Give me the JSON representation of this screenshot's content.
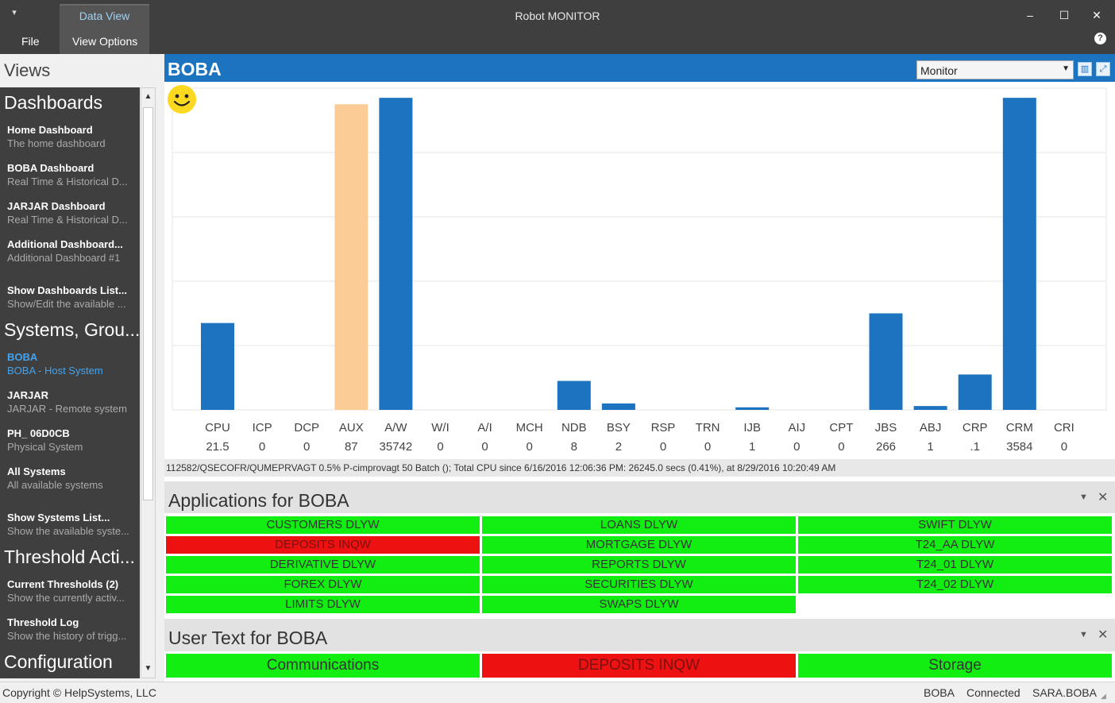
{
  "window": {
    "title": "Robot MONITOR",
    "tab_label": "Data View",
    "menu": [
      "File",
      "View Options"
    ],
    "controls": {
      "minimize": "–",
      "maximize": "☐",
      "close": "✕",
      "help": "?"
    }
  },
  "sidebar": {
    "title": "Views",
    "sections": {
      "dashboards": "Dashboards",
      "systems": "Systems, Grou...",
      "thresholds": "Threshold Acti...",
      "configuration": "Configuration"
    },
    "dashboards": [
      {
        "title": "Home Dashboard",
        "sub": "The home dashboard"
      },
      {
        "title": "BOBA Dashboard",
        "sub": "Real Time & Historical D..."
      },
      {
        "title": "JARJAR Dashboard",
        "sub": "Real Time & Historical D..."
      },
      {
        "title": "Additional Dashboard...",
        "sub": "Additional Dashboard #1"
      },
      {
        "title": "Show Dashboards List...",
        "sub": "Show/Edit the available ..."
      }
    ],
    "systems": [
      {
        "title": "BOBA",
        "sub": "BOBA - Host System"
      },
      {
        "title": "JARJAR",
        "sub": "JARJAR - Remote system"
      },
      {
        "title": "PH_ 06D0CB",
        "sub": "Physical System"
      },
      {
        "title": "All Systems",
        "sub": "All available systems"
      },
      {
        "title": "Show Systems List...",
        "sub": "Show the available syste..."
      }
    ],
    "thresholds": [
      {
        "title": "Current Thresholds (2)",
        "sub": "Show the currently activ..."
      },
      {
        "title": "Threshold Log",
        "sub": "Show the history of trigg..."
      }
    ]
  },
  "main": {
    "title": "BOBA",
    "view_select": "Monitor",
    "status_line": "112582/QSECOFR/QUMEPRVAGT 0.5% P-cimprovagt 50 Batch (); Total CPU since 6/16/2016 12:06:36 PM: 26245.0 secs (0.41%), at 8/29/2016 10:20:49 AM"
  },
  "chart_data": {
    "type": "bar",
    "categories": [
      "CPU",
      "ICP",
      "DCP",
      "AUX",
      "A/W",
      "W/I",
      "A/I",
      "MCH",
      "NDB",
      "BSY",
      "RSP",
      "TRN",
      "IJB",
      "AIJ",
      "CPT",
      "JBS",
      "ABJ",
      "CRP",
      "CRM",
      "CRI"
    ],
    "value_labels": [
      "21.5",
      "0",
      "0",
      "87",
      "35742",
      "0",
      "0",
      "0",
      "8",
      "2",
      "0",
      "0",
      "1",
      "0",
      "0",
      "266",
      "1",
      ".1",
      "3584",
      "0"
    ],
    "bar_fraction": [
      0.27,
      0,
      0,
      0.95,
      0.97,
      0,
      0,
      0,
      0.09,
      0.02,
      0,
      0,
      0.008,
      0,
      0,
      0.3,
      0.012,
      0.11,
      0.97,
      0
    ],
    "highlight_index": 3,
    "colors": {
      "bar": "#1c73c0",
      "highlight": "#fccc96",
      "grid": "#e4e4e4"
    },
    "grid": true
  },
  "applications": {
    "title": "Applications for BOBA",
    "columns": [
      [
        {
          "label": "CUSTOMERS DLYW",
          "status": "ok"
        },
        {
          "label": "DEPOSITS INQW",
          "status": "bad"
        },
        {
          "label": "DERIVATIVE DLYW",
          "status": "ok"
        },
        {
          "label": "FOREX DLYW",
          "status": "ok"
        },
        {
          "label": "LIMITS DLYW",
          "status": "ok"
        }
      ],
      [
        {
          "label": "LOANS DLYW",
          "status": "ok"
        },
        {
          "label": "MORTGAGE DLYW",
          "status": "ok"
        },
        {
          "label": "REPORTS DLYW",
          "status": "ok"
        },
        {
          "label": "SECURITIES DLYW",
          "status": "ok"
        },
        {
          "label": "SWAPS DLYW",
          "status": "ok"
        }
      ],
      [
        {
          "label": "SWIFT DLYW",
          "status": "ok"
        },
        {
          "label": "T24_AA DLYW",
          "status": "ok"
        },
        {
          "label": "T24_01 DLYW",
          "status": "ok"
        },
        {
          "label": "T24_02 DLYW",
          "status": "ok"
        }
      ]
    ]
  },
  "user_text": {
    "title": "User Text for BOBA",
    "items": [
      {
        "label": "Communications",
        "status": "ok"
      },
      {
        "label": "DEPOSITS INQW",
        "status": "bad"
      },
      {
        "label": "Storage",
        "status": "ok"
      }
    ]
  },
  "statusbar": {
    "copyright": "Copyright © HelpSystems, LLC",
    "system": "BOBA",
    "connection": "Connected",
    "user": "SARA.BOBA"
  },
  "colors": {
    "ok": "#12ee12",
    "bad": "#ee1111",
    "accent": "#1c73c0",
    "titlebar": "#3f3f3f"
  }
}
